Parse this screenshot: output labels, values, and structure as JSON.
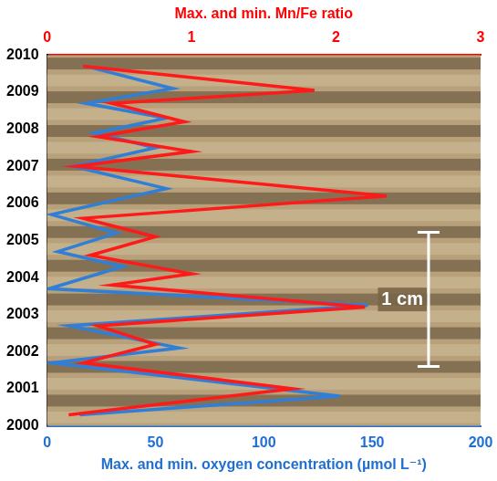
{
  "chart_data": {
    "type": "line",
    "xlabel": "Max. and min. oxygen concentration (µmol L⁻¹)",
    "x2label": "Max. and min. Mn/Fe ratio",
    "xlim": [
      0,
      200
    ],
    "xticks": [
      0,
      50,
      100,
      150,
      200
    ],
    "x2lim": [
      0,
      3
    ],
    "x2ticks": [
      0,
      1,
      2,
      3
    ],
    "ylim": [
      2000,
      2010
    ],
    "yticks": [
      2000,
      2001,
      2002,
      2003,
      2004,
      2005,
      2006,
      2007,
      2008,
      2009,
      2010
    ],
    "grid": false,
    "annotations": [
      {
        "text": "1 cm"
      }
    ],
    "series": [
      {
        "color": "#2f7fd8",
        "axis": "x",
        "x": [
          18,
          58,
          18,
          55,
          22,
          50,
          12,
          55,
          2,
          32,
          5,
          35,
          1,
          148,
          10,
          61,
          2,
          135,
          15
        ],
        "y": [
          2009.7,
          2009.1,
          2008.7,
          2008.3,
          2007.9,
          2007.5,
          2007.0,
          2006.4,
          2005.7,
          2005.2,
          2004.7,
          2004.3,
          2003.7,
          2003.25,
          2002.7,
          2002.1,
          2001.7,
          2000.8,
          2000.3
        ]
      },
      {
        "color": "#ff1a1a",
        "axis": "x2",
        "x": [
          0.25,
          1.85,
          0.45,
          0.95,
          0.35,
          1.0,
          0.2,
          2.35,
          0.25,
          0.75,
          0.3,
          1.0,
          0.45,
          2.2,
          0.35,
          0.75,
          0.25,
          1.7,
          0.15
        ],
        "y": [
          2009.7,
          2009.05,
          2008.7,
          2008.2,
          2007.8,
          2007.4,
          2007.0,
          2006.2,
          2005.6,
          2005.1,
          2004.6,
          2004.1,
          2003.8,
          2003.2,
          2002.7,
          2002.2,
          2001.7,
          2001.0,
          2000.3
        ]
      }
    ]
  }
}
